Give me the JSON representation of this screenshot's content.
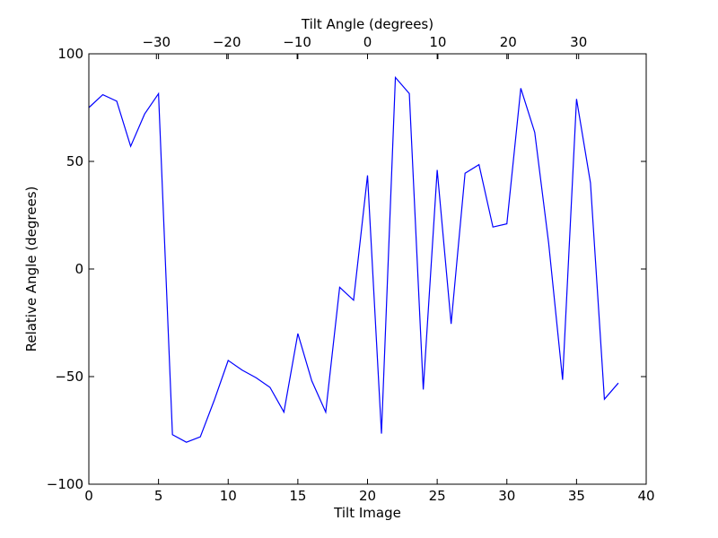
{
  "chart_data": {
    "type": "line",
    "xlabel": "Tilt Image",
    "ylabel": "Relative Angle (degrees)",
    "top_xlabel": "Tilt Angle (degrees)",
    "xlim": [
      0,
      40
    ],
    "ylim": [
      -100,
      100
    ],
    "top_xlim": [
      -39.6,
      39.6
    ],
    "x_ticks": [
      0,
      5,
      10,
      15,
      20,
      25,
      30,
      35,
      40
    ],
    "y_ticks": [
      -100,
      -50,
      0,
      50,
      100
    ],
    "top_ticks": [
      -30,
      -20,
      -10,
      0,
      10,
      20,
      30
    ],
    "x_tick_labels": [
      "0",
      "5",
      "10",
      "15",
      "20",
      "25",
      "30",
      "35",
      "40"
    ],
    "y_tick_labels": [
      "−100",
      "−50",
      "0",
      "50",
      "100"
    ],
    "top_tick_labels": [
      "−30",
      "−20",
      "−10",
      "0",
      "10",
      "20",
      "30"
    ],
    "grid": false,
    "series": [
      {
        "color": "#0000ff",
        "x": [
          0,
          1,
          2,
          3,
          4,
          5,
          6,
          7,
          8,
          9,
          10,
          11,
          12,
          13,
          14,
          15,
          16,
          17,
          18,
          19,
          20,
          21,
          22,
          23,
          24,
          25,
          26,
          27,
          28,
          29,
          30,
          31,
          32,
          33,
          34,
          35,
          36,
          37,
          38
        ],
        "values": [
          75,
          81,
          78,
          57,
          72,
          81.5,
          -77,
          -80.5,
          -78,
          -61,
          -42.5,
          -47,
          -50.5,
          -55,
          -66.5,
          -30,
          -52,
          -66.5,
          -8.5,
          -14.5,
          43.5,
          -76.5,
          89,
          81.5,
          -56,
          46,
          -25.5,
          44.5,
          48.5,
          19.5,
          21,
          84,
          63.5,
          12,
          -51.5,
          79,
          40,
          -60.5,
          -53
        ]
      }
    ]
  }
}
